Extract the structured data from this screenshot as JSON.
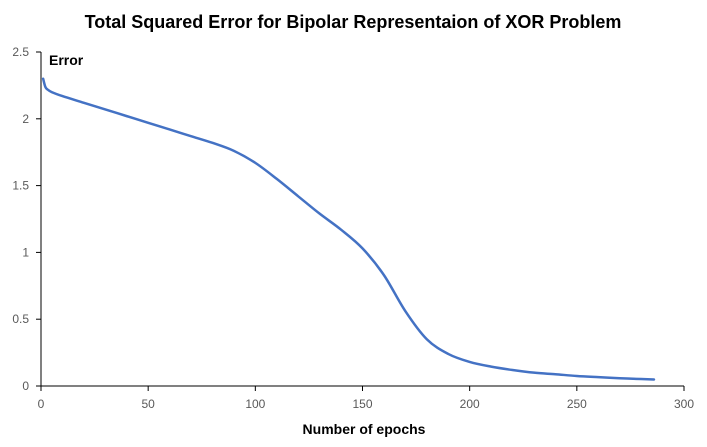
{
  "chart_data": {
    "type": "line",
    "title": "Total Squared Error for Bipolar Representaion of XOR Problem",
    "xlabel": "Number of epochs",
    "ylabel": "Error",
    "xlim": [
      0,
      300
    ],
    "ylim": [
      0,
      2.5
    ],
    "xticks": [
      "0",
      "50",
      "100",
      "150",
      "200",
      "250",
      "300"
    ],
    "yticks": [
      "0",
      "0.5",
      "1",
      "1.5",
      "2",
      "2.5"
    ],
    "grid": false,
    "legend": "none",
    "series": [
      {
        "color": "#4472C4",
        "x": [
          1,
          2,
          3,
          5,
          10,
          20,
          30,
          40,
          50,
          60,
          70,
          80,
          90,
          100,
          110,
          120,
          130,
          140,
          150,
          160,
          170,
          180,
          190,
          200,
          210,
          220,
          230,
          240,
          250,
          260,
          270,
          280,
          286
        ],
        "y": [
          2.3,
          2.24,
          2.22,
          2.2,
          2.17,
          2.12,
          2.07,
          2.02,
          1.97,
          1.92,
          1.87,
          1.82,
          1.76,
          1.67,
          1.55,
          1.42,
          1.29,
          1.17,
          1.03,
          0.83,
          0.56,
          0.35,
          0.24,
          0.18,
          0.145,
          0.12,
          0.1,
          0.088,
          0.075,
          0.066,
          0.058,
          0.052,
          0.049
        ]
      }
    ]
  }
}
